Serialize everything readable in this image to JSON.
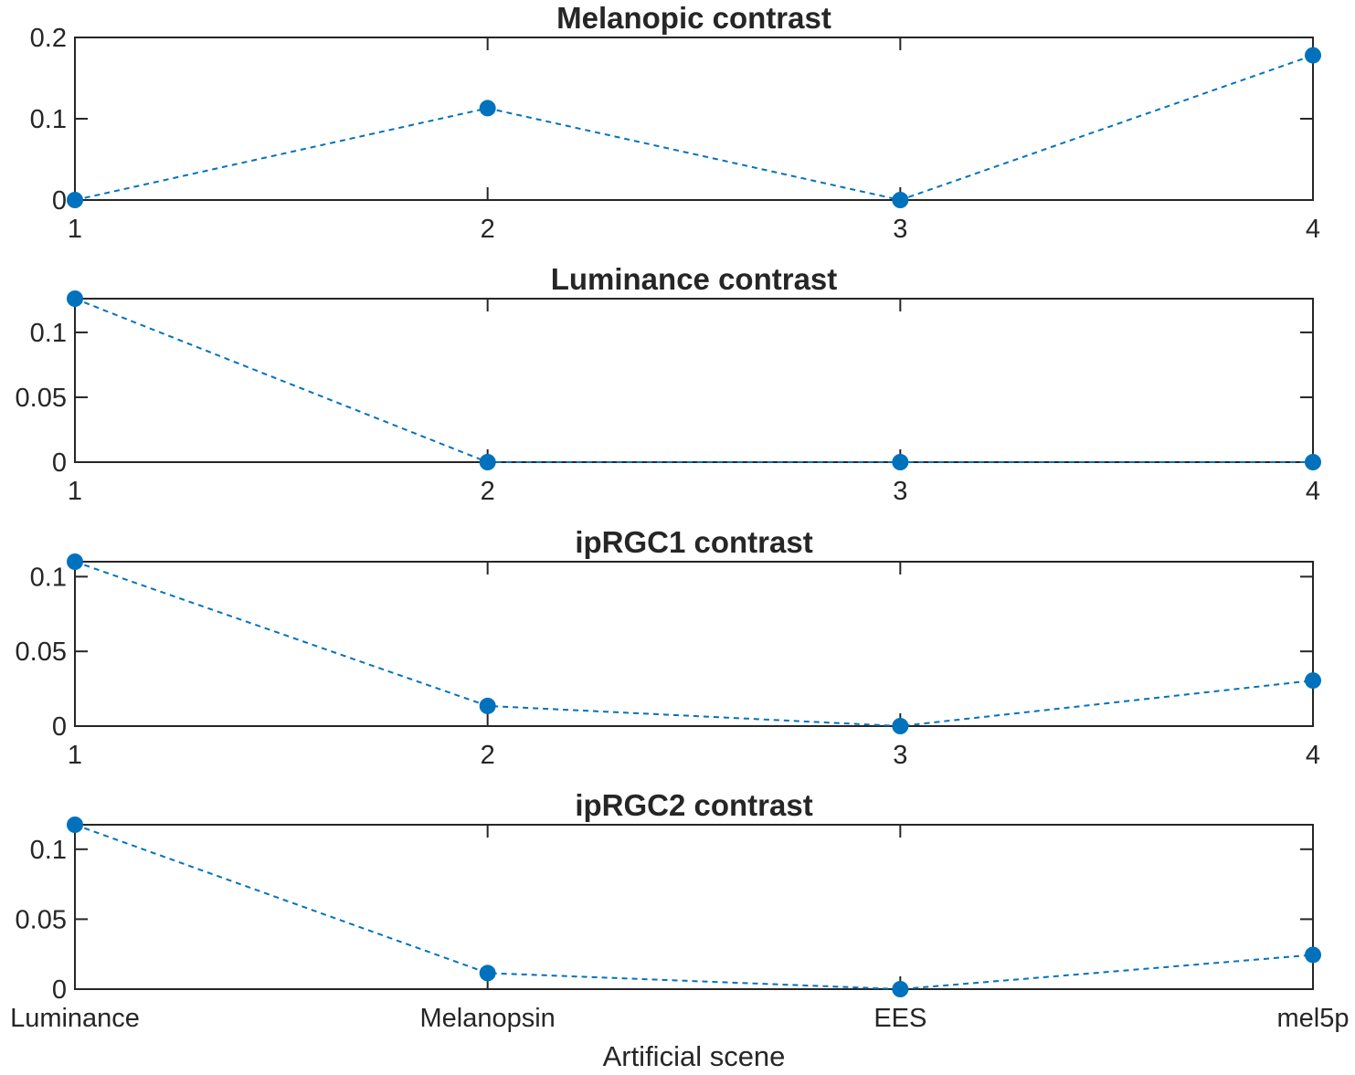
{
  "chart_data": [
    {
      "type": "line",
      "title": "Melanopic contrast",
      "x": [
        1,
        2,
        3,
        4
      ],
      "xlim": [
        1,
        4
      ],
      "ylim": [
        0,
        0.2
      ],
      "xticks": [
        "1",
        "2",
        "3",
        "4"
      ],
      "yticks": [
        0,
        0.1,
        0.2
      ],
      "ytick_labels": [
        "0",
        "0.1",
        "0.2"
      ],
      "xlabel": "",
      "ylabel": "",
      "grid": false,
      "line_style": "dashed",
      "marker": "circle",
      "color": "#0072BD",
      "series": [
        {
          "values": [
            0.0,
            0.113,
            0.0,
            0.178
          ]
        }
      ]
    },
    {
      "type": "line",
      "title": "Luminance contrast",
      "x": [
        1,
        2,
        3,
        4
      ],
      "xlim": [
        1,
        4
      ],
      "ylim": [
        0,
        0.126
      ],
      "xticks": [
        "1",
        "2",
        "3",
        "4"
      ],
      "yticks": [
        0,
        0.05,
        0.1
      ],
      "ytick_labels": [
        "0",
        "0.05",
        "0.1"
      ],
      "xlabel": "",
      "ylabel": "",
      "grid": false,
      "line_style": "dashed",
      "marker": "circle",
      "color": "#0072BD",
      "series": [
        {
          "values": [
            0.126,
            0.0,
            0.0,
            0.0
          ]
        }
      ]
    },
    {
      "type": "line",
      "title": "ipRGC1 contrast",
      "x": [
        1,
        2,
        3,
        4
      ],
      "xlim": [
        1,
        4
      ],
      "ylim": [
        0,
        0.11
      ],
      "xticks": [
        "1",
        "2",
        "3",
        "4"
      ],
      "yticks": [
        0,
        0.05,
        0.1
      ],
      "ytick_labels": [
        "0",
        "0.05",
        "0.1"
      ],
      "xlabel": "",
      "ylabel": "",
      "grid": false,
      "line_style": "dashed",
      "marker": "circle",
      "color": "#0072BD",
      "series": [
        {
          "values": [
            0.11,
            0.0135,
            0.0,
            0.0305
          ]
        }
      ]
    },
    {
      "type": "line",
      "title": "ipRGC2 contrast",
      "x": [
        1,
        2,
        3,
        4
      ],
      "xlim": [
        1,
        4
      ],
      "ylim": [
        0,
        0.1175
      ],
      "xticks": [
        "Luminance",
        "Melanopsin",
        "EES",
        "mel5p"
      ],
      "yticks": [
        0,
        0.05,
        0.1
      ],
      "ytick_labels": [
        "0",
        "0.05",
        "0.1"
      ],
      "xlabel": "Artificial scene",
      "ylabel": "",
      "grid": false,
      "line_style": "dashed",
      "marker": "circle",
      "color": "#0072BD",
      "series": [
        {
          "values": [
            0.1175,
            0.0115,
            0.0,
            0.0245
          ]
        }
      ]
    }
  ]
}
